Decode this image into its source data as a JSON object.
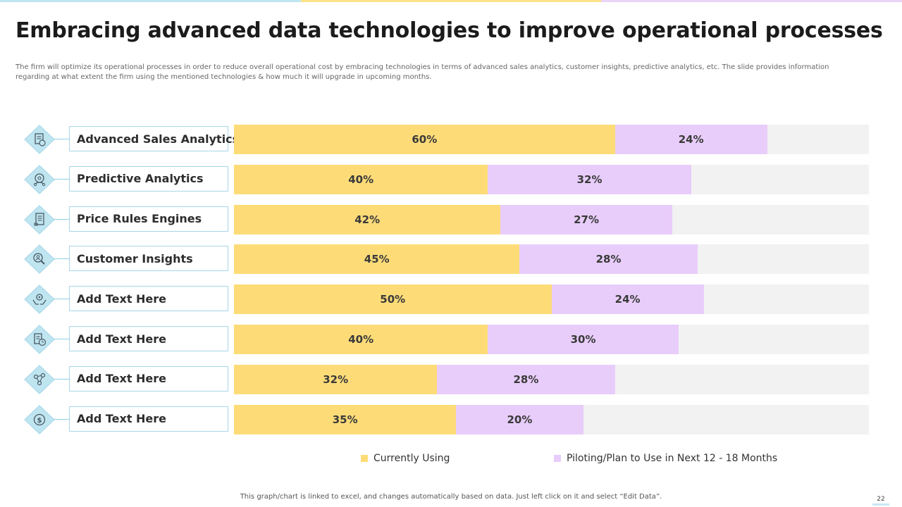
{
  "slide": {
    "title": "Embracing advanced data technologies to improve operational processes",
    "subtitle": "The firm will optimize its operational processes in order to reduce overall operational cost by embracing technologies in terms of advanced sales analytics, customer insights, predictive analytics, etc. The  slide provides information regarding at what extent  the  firm using the mentioned technologies & how much it will upgrade in upcoming months.",
    "footnote": "This graph/chart is linked to excel, and changes automatically based on data. Just left click on it and select “Edit Data”.",
    "page_number": "22"
  },
  "colors": {
    "accent_blue": "#bfe6f1",
    "accent_yellow": "#fde28a",
    "accent_purple": "#ead5f8",
    "series_current": "#fddc78",
    "series_piloting": "#e8cdfa",
    "track": "#f2f2f2",
    "icon_fill": "#bfe5f1"
  },
  "chart_data": {
    "type": "bar",
    "orientation": "horizontal",
    "stacked": true,
    "title": "",
    "xlabel": "",
    "ylabel": "",
    "xlim": [
      0,
      100
    ],
    "categories": [
      "Advanced Sales Analytics",
      "Predictive Analytics",
      "Price Rules Engines",
      "Customer Insights",
      "Add Text Here",
      "Add Text Here",
      "Add Text Here",
      "Add Text Here"
    ],
    "icons": [
      "report-dollar-icon",
      "brain-gear-icon",
      "document-scroll-icon",
      "magnifier-person-icon",
      "hands-gear-icon",
      "document-clock-icon",
      "people-network-icon",
      "dollar-coin-icon"
    ],
    "series": [
      {
        "name": "Currently Using",
        "values": [
          60,
          40,
          42,
          45,
          50,
          40,
          32,
          35
        ],
        "labels": [
          "60%",
          "40%",
          "42%",
          "45%",
          "50%",
          "40%",
          "32%",
          "35%"
        ]
      },
      {
        "name": "Piloting/Plan to Use in Next 12 - 18 Months",
        "values": [
          24,
          32,
          27,
          28,
          24,
          30,
          28,
          20
        ],
        "labels": [
          "24%",
          "32%",
          "27%",
          "28%",
          "24%",
          "30%",
          "28%",
          "20%"
        ]
      }
    ],
    "legend": "bottom"
  }
}
